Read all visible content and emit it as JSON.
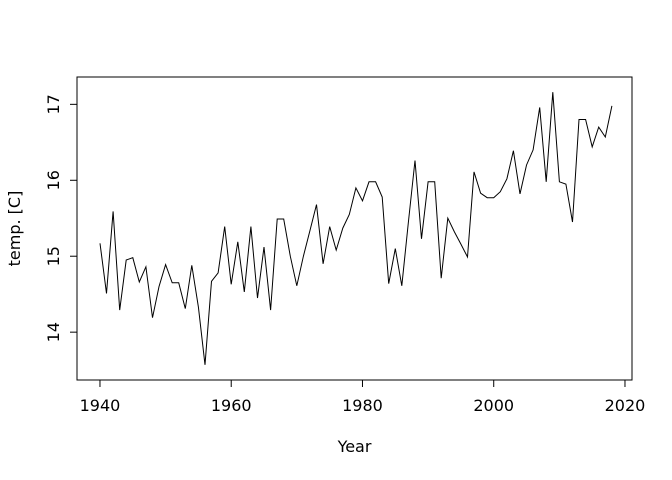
{
  "chart_data": {
    "type": "line",
    "title": "",
    "xlabel": "Year",
    "ylabel": "temp. [C]",
    "x": [
      1940,
      1941,
      1942,
      1943,
      1944,
      1945,
      1946,
      1947,
      1948,
      1949,
      1950,
      1951,
      1952,
      1953,
      1954,
      1955,
      1956,
      1957,
      1958,
      1959,
      1960,
      1961,
      1962,
      1963,
      1964,
      1965,
      1966,
      1967,
      1968,
      1969,
      1970,
      1971,
      1972,
      1973,
      1974,
      1975,
      1976,
      1977,
      1978,
      1979,
      1980,
      1981,
      1982,
      1983,
      1984,
      1985,
      1986,
      1987,
      1988,
      1989,
      1990,
      1991,
      1992,
      1993,
      1994,
      1995,
      1996,
      1997,
      1998,
      1999,
      2000,
      2001,
      2002,
      2003,
      2004,
      2005,
      2006,
      2007,
      2008,
      2009,
      2010,
      2011,
      2012,
      2013,
      2014,
      2015,
      2016,
      2017,
      2018
    ],
    "series": [
      {
        "name": "temp",
        "values": [
          15.17,
          14.51,
          15.59,
          14.29,
          14.95,
          14.98,
          14.66,
          14.86,
          14.19,
          14.6,
          14.89,
          14.65,
          14.65,
          14.31,
          14.88,
          14.33,
          13.57,
          14.67,
          14.78,
          15.39,
          14.63,
          15.19,
          14.53,
          15.39,
          14.45,
          15.12,
          14.29,
          15.49,
          15.49,
          15.0,
          14.61,
          15.0,
          15.34,
          15.68,
          14.9,
          15.39,
          15.08,
          15.37,
          15.55,
          15.9,
          15.73,
          15.98,
          15.98,
          15.78,
          14.64,
          15.1,
          14.61,
          15.45,
          16.26,
          15.23,
          15.98,
          15.98,
          14.71,
          15.5,
          15.32,
          15.16,
          14.99,
          16.11,
          15.83,
          15.77,
          15.77,
          15.85,
          16.02,
          16.39,
          15.82,
          16.2,
          16.4,
          16.96,
          15.98,
          17.16,
          15.98,
          15.95,
          15.45,
          16.8,
          16.8,
          16.44,
          16.7,
          16.57,
          16.98
        ]
      }
    ],
    "xticks": [
      1940,
      1960,
      1980,
      2000,
      2020
    ],
    "xtick_labels": [
      "1940",
      "1960",
      "1980",
      "2000",
      "2020"
    ],
    "yticks": [
      14,
      15,
      16,
      17
    ],
    "ytick_labels": [
      "14",
      "15",
      "16",
      "17"
    ],
    "xlim": [
      1936.5,
      2021.07
    ],
    "ylim": [
      13.37,
      17.36
    ],
    "grid": false,
    "legend": null,
    "line_color": "#000000",
    "axis_color": "#000000",
    "background": "#ffffff"
  }
}
